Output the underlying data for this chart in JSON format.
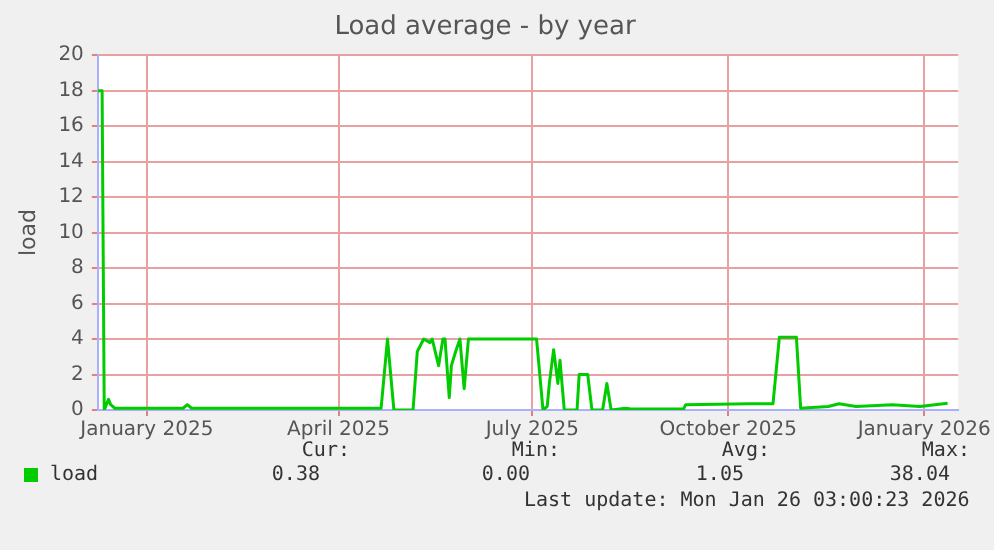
{
  "chart_data": {
    "type": "line",
    "title": "Load average - by year",
    "ylabel": "load",
    "x": [
      "2024-12-23",
      "2024-12-25",
      "2024-12-26",
      "2024-12-28",
      "2024-12-29",
      "2024-12-31",
      "2025-02-01",
      "2025-02-03",
      "2025-02-05",
      "2025-05-05",
      "2025-05-08",
      "2025-05-11",
      "2025-05-20",
      "2025-05-22",
      "2025-05-25",
      "2025-05-28",
      "2025-05-29",
      "2025-06-01",
      "2025-06-03",
      "2025-06-04",
      "2025-06-06",
      "2025-06-07",
      "2025-06-09",
      "2025-06-11",
      "2025-06-13",
      "2025-06-15",
      "2025-07-17",
      "2025-07-20",
      "2025-07-22",
      "2025-07-23",
      "2025-07-25",
      "2025-07-27",
      "2025-07-28",
      "2025-07-30",
      "2025-08-05",
      "2025-08-06",
      "2025-08-10",
      "2025-08-12",
      "2025-08-17",
      "2025-08-19",
      "2025-08-21",
      "2025-08-28",
      "2025-08-31",
      "2025-09-24",
      "2025-09-25",
      "2025-10-25",
      "2025-11-05",
      "2025-11-08",
      "2025-11-16",
      "2025-11-18",
      "2025-12-01",
      "2025-12-06",
      "2025-12-14",
      "2025-12-31",
      "2026-01-13",
      "2026-01-26"
    ],
    "series": [
      {
        "name": "load",
        "color": "#00cc00",
        "values": [
          18,
          18,
          0,
          0.6,
          0.3,
          0.1,
          0.1,
          0.3,
          0.1,
          0.1,
          4,
          0,
          0,
          3.3,
          4,
          3.8,
          4,
          2.5,
          4,
          4,
          0.7,
          2.5,
          3.3,
          4,
          1.2,
          4,
          4,
          0,
          0.2,
          1.5,
          3.4,
          1.5,
          2.8,
          0,
          0,
          2,
          2,
          0,
          0,
          1.5,
          0,
          0.1,
          0.05,
          0.05,
          0.3,
          0.35,
          0.35,
          4.1,
          4.1,
          0.1,
          0.2,
          0.35,
          0.2,
          0.3,
          0.2,
          0.38
        ]
      }
    ],
    "xlim": [
      "2024-12-23",
      "2026-01-31"
    ],
    "xticks": [
      {
        "value": "2025-01-15",
        "label": "January 2025"
      },
      {
        "value": "2025-04-15",
        "label": "April 2025"
      },
      {
        "value": "2025-07-15",
        "label": "July 2025"
      },
      {
        "value": "2025-10-15",
        "label": "October 2025"
      },
      {
        "value": "2026-01-15",
        "label": "January 2026"
      }
    ],
    "ylim": [
      0,
      20
    ],
    "yticks": [
      0,
      2,
      4,
      6,
      8,
      10,
      12,
      14,
      16,
      18,
      20
    ],
    "grid": true,
    "legend": "bottom left",
    "marker": "none",
    "line_style": "solid",
    "annotations": [
      "Cur:",
      "0.38",
      "Min:",
      "0.00",
      "Avg:",
      "1.05",
      "Max:",
      "38.04",
      "Last update: Mon Jan 26 03:00:23 2026"
    ]
  }
}
